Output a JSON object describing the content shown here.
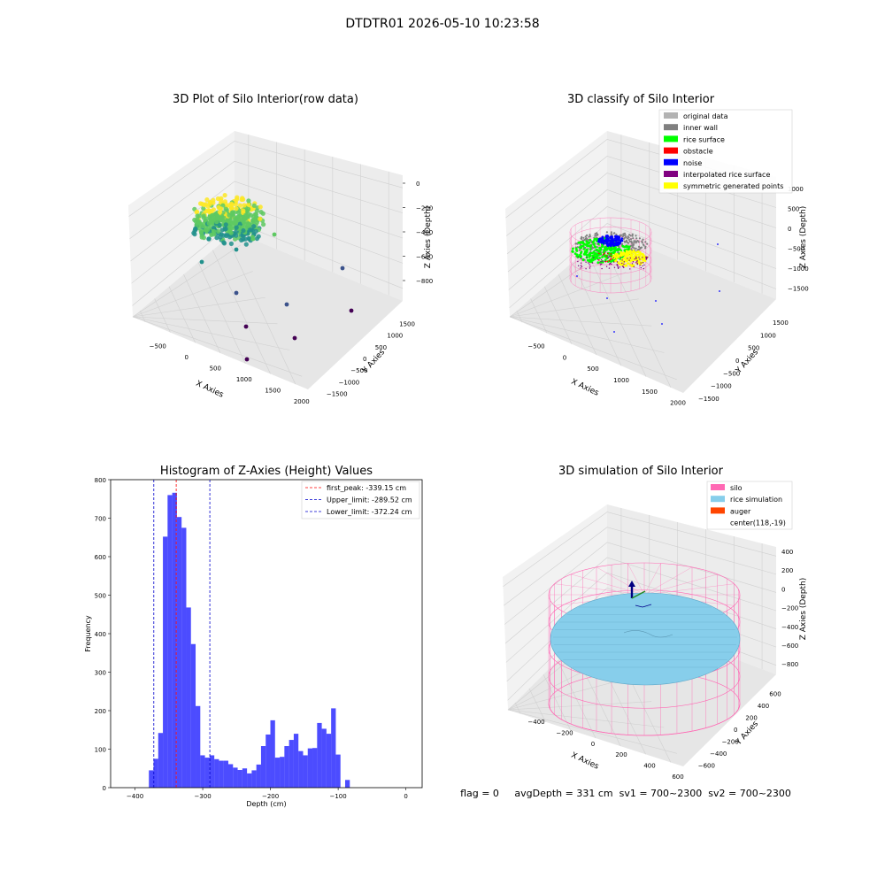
{
  "page_title": "DTDTR01 2026-05-10 10:23:58",
  "status_line": "flag = 0     avgDepth = 331 cm  sv1 = 700~2300  sv2 = 700~2300",
  "chart_data": [
    {
      "id": "raw",
      "type": "scatter3d",
      "title": "3D Plot of Silo Interior(row data)",
      "xlabel": "X Axies",
      "ylabel": "Y Axies",
      "zlabel": "Z Axies (Depth)",
      "x_ticks": [
        "−500",
        "0",
        "500",
        "1000",
        "1500",
        "2000"
      ],
      "y_ticks": [
        "−1500",
        "−1000",
        "−500",
        "0",
        "500",
        "1000",
        "1500"
      ],
      "z_ticks": [
        "0",
        "−200",
        "−400",
        "−600",
        "−800"
      ],
      "colormap": [
        "#440154",
        "#3b528b",
        "#21918c",
        "#5ec962",
        "#fde725"
      ]
    },
    {
      "id": "classify",
      "type": "scatter3d",
      "title": "3D classify of Silo Interior",
      "xlabel": "X Axies",
      "ylabel": "Y Axies",
      "zlabel": "Z Axies (Depth)",
      "x_ticks": [
        "−500",
        "0",
        "500",
        "1000",
        "1500",
        "2000"
      ],
      "y_ticks": [
        "−1500",
        "−1000",
        "−500",
        "0",
        "500",
        "1000",
        "1500"
      ],
      "z_ticks": [
        "1000",
        "500",
        "0",
        "−500",
        "−1000",
        "−1500"
      ],
      "legend_position": "top-right",
      "legend": [
        {
          "label": "original data",
          "color": "#b3b3b3"
        },
        {
          "label": "inner wall",
          "color": "#808080"
        },
        {
          "label": "rice surface",
          "color": "#00ff00"
        },
        {
          "label": "obstacle",
          "color": "#ff0000"
        },
        {
          "label": "noise",
          "color": "#0000ff"
        },
        {
          "label": "interpolated rice surface",
          "color": "#800080"
        },
        {
          "label": "symmetric generated points",
          "color": "#ffff00"
        }
      ]
    },
    {
      "id": "histogram",
      "type": "bar",
      "title": "Histogram of Z-Axies (Height) Values",
      "xlabel": "Depth (cm)",
      "ylabel": "Frequency",
      "xlim": [
        -436,
        24
      ],
      "ylim": [
        0,
        800
      ],
      "x_ticks": [
        -400,
        -300,
        -200,
        -100,
        0
      ],
      "x_tick_labels": [
        "−400",
        "−300",
        "−200",
        "−100",
        "0"
      ],
      "y_ticks": [
        0,
        100,
        200,
        300,
        400,
        500,
        600,
        700,
        800
      ],
      "bar_color": "#0000ff",
      "bin_start": -379.5,
      "bin_width": 6.9,
      "values": [
        45,
        75,
        142,
        652,
        760,
        766,
        703,
        675,
        468,
        373,
        212,
        84,
        78,
        84,
        74,
        70,
        70,
        61,
        52,
        46,
        50,
        37,
        45,
        60,
        108,
        138,
        175,
        78,
        80,
        108,
        124,
        140,
        95,
        84,
        102,
        103,
        168,
        153,
        140,
        206,
        86,
        0,
        20
      ],
      "lines": [
        {
          "label": "first_peak: -339.15 cm",
          "x": -339.15,
          "color": "#ff0000"
        },
        {
          "label": "Upper_limit: -289.52 cm",
          "x": -289.52,
          "color": "#0000cc"
        },
        {
          "label": "Lower_limit: -372.24 cm",
          "x": -372.24,
          "color": "#0000cc"
        }
      ],
      "legend_position": "top-right"
    },
    {
      "id": "simulation",
      "type": "surface3d",
      "title": "3D simulation of Silo Interior",
      "xlabel": "X Axies",
      "ylabel": "Y Axies",
      "zlabel": "Z Axies (Depth)",
      "x_ticks": [
        "−400",
        "−200",
        "0",
        "200",
        "400",
        "600"
      ],
      "y_ticks": [
        "−600",
        "−400",
        "−200",
        "0",
        "200",
        "400",
        "600"
      ],
      "z_ticks": [
        "400",
        "200",
        "0",
        "−200",
        "−400",
        "−600",
        "−800"
      ],
      "legend_position": "top-right",
      "legend": [
        {
          "label": "silo",
          "color": "#ff69b4"
        },
        {
          "label": "rice simulation",
          "color": "#87ceeb"
        },
        {
          "label": "auger",
          "color": "#ff4500"
        },
        {
          "label": "center(118,-19)",
          "color": "none"
        }
      ]
    }
  ]
}
